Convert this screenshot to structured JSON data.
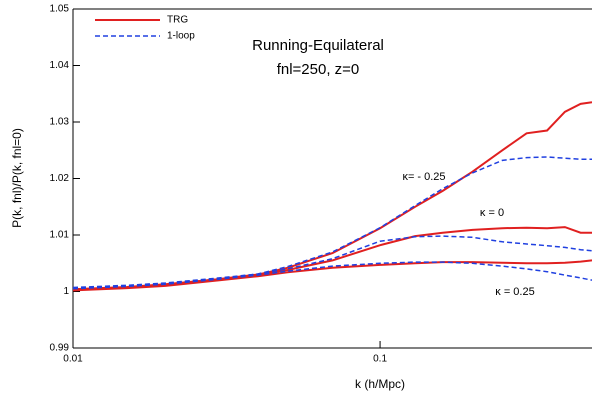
{
  "chart_data": {
    "type": "line",
    "title": "Running-Equilateral",
    "subtitle": "fnl=250, z=0",
    "x_label": "k (h/Mpc)",
    "y_label": "P(k, fnl)/P(k, fnl=0)",
    "log_x": true,
    "xlim": [
      0.01,
      0.49
    ],
    "xticks": [
      0.01,
      0.1
    ],
    "ylim": [
      0.99,
      1.05
    ],
    "yticks": [
      0.99,
      1,
      1.01,
      1.02,
      1.03,
      1.04,
      1.05
    ],
    "legend": "upper left",
    "annotations": [
      "κ= - 0.25",
      "κ = 0",
      "κ = 0.25"
    ],
    "x": [
      0.01,
      0.015,
      0.02,
      0.03,
      0.04,
      0.05,
      0.07,
      0.1,
      0.13,
      0.16,
      0.2,
      0.25,
      0.3,
      0.35,
      0.4,
      0.45,
      0.49
    ],
    "series": [
      {
        "name": "TRG",
        "color": "#e02020",
        "dashed": false,
        "values": [
          1.0003,
          1.0007,
          1.0012,
          1.0022,
          1.003,
          1.0042,
          1.0068,
          1.0112,
          1.015,
          1.0178,
          1.0212,
          1.025,
          1.028,
          1.0285,
          1.0318,
          1.0332,
          1.0335
        ]
      },
      {
        "name": "1-loop",
        "color": "#2040e0",
        "dashed": true,
        "values": [
          1.0006,
          1.001,
          1.0014,
          1.0023,
          1.0031,
          1.0044,
          1.007,
          1.0113,
          1.0152,
          1.0182,
          1.021,
          1.0232,
          1.0237,
          1.0238,
          1.0236,
          1.0234,
          1.0234
        ]
      },
      {
        "name": "TRG",
        "color": "#e02020",
        "dashed": false,
        "values": [
          1.0004,
          1.0008,
          1.0013,
          1.0022,
          1.003,
          1.0038,
          1.0055,
          1.0082,
          1.0098,
          1.0104,
          1.0109,
          1.0112,
          1.0113,
          1.0112,
          1.0114,
          1.0104,
          1.0104
        ]
      },
      {
        "name": "1-loop",
        "color": "#2040e0",
        "dashed": true,
        "values": [
          1.0007,
          1.0011,
          1.0015,
          1.0024,
          1.0031,
          1.004,
          1.0058,
          1.0089,
          1.0097,
          1.0098,
          1.0096,
          1.0088,
          1.0084,
          1.0081,
          1.0078,
          1.0074,
          1.0072
        ]
      },
      {
        "name": "TRG",
        "color": "#e02020",
        "dashed": false,
        "values": [
          1.0002,
          1.0006,
          1.001,
          1.002,
          1.0027,
          1.0034,
          1.0042,
          1.0047,
          1.005,
          1.0052,
          1.0052,
          1.0051,
          1.005,
          1.005,
          1.0051,
          1.0053,
          1.0055
        ]
      },
      {
        "name": "1-loop",
        "color": "#2040e0",
        "dashed": true,
        "values": [
          1.0005,
          1.0009,
          1.0013,
          1.0022,
          1.0029,
          1.0036,
          1.0045,
          1.005,
          1.0052,
          1.0052,
          1.005,
          1.0045,
          1.004,
          1.0035,
          1.0029,
          1.0024,
          1.002
        ]
      }
    ]
  }
}
